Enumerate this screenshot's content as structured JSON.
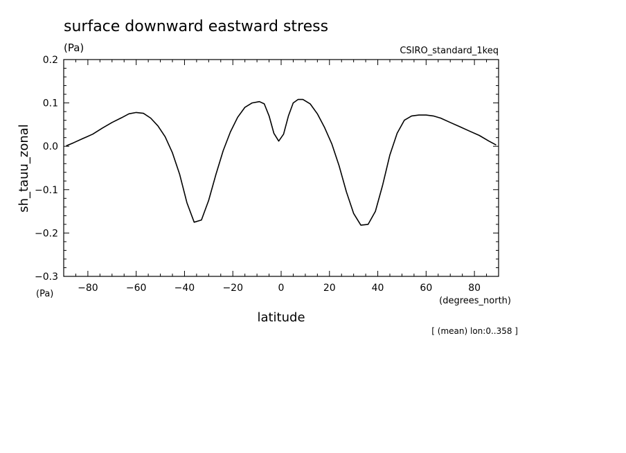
{
  "chart_data": {
    "type": "line",
    "title": "surface downward eastward stress",
    "title_units": "(Pa)",
    "subtitle_right": "CSIRO_standard_1keq",
    "xlabel": "latitude",
    "xunits": "(degrees_north)",
    "ylabel": "sh_tauu_zonal",
    "yunits": "(Pa)",
    "footnote": "[ (mean) lon:0..358 ]",
    "xlim": [
      -90,
      90
    ],
    "ylim": [
      -0.3,
      0.2
    ],
    "x_major_ticks": [
      -80,
      -60,
      -40,
      -20,
      0,
      20,
      40,
      60,
      80
    ],
    "x_tick_labels": [
      "−80",
      "−60",
      "−40",
      "−20",
      "0",
      "20",
      "40",
      "60",
      "80"
    ],
    "y_major_ticks": [
      -0.3,
      -0.2,
      -0.1,
      0.0,
      0.1,
      0.2
    ],
    "y_tick_labels": [
      "−0.3",
      "−0.2",
      "−0.1",
      "0.0",
      "0.1",
      "0.2"
    ],
    "grid": false,
    "legend": "none",
    "series": [
      {
        "color": "#000000",
        "x": [
          -89,
          -86,
          -82,
          -78,
          -74,
          -70,
          -66,
          -63,
          -60,
          -57,
          -54,
          -51,
          -48,
          -45,
          -42,
          -39,
          -36,
          -33,
          -30,
          -27,
          -24,
          -21,
          -18,
          -15,
          -12,
          -9,
          -7,
          -5,
          -3,
          -1,
          1,
          3,
          5,
          7,
          9,
          12,
          15,
          18,
          21,
          24,
          27,
          30,
          33,
          36,
          39,
          42,
          45,
          48,
          51,
          54,
          57,
          60,
          63,
          66,
          70,
          74,
          78,
          82,
          86,
          89
        ],
        "y": [
          0.001,
          0.008,
          0.018,
          0.028,
          0.042,
          0.055,
          0.066,
          0.075,
          0.078,
          0.076,
          0.065,
          0.047,
          0.022,
          -0.015,
          -0.065,
          -0.13,
          -0.175,
          -0.17,
          -0.125,
          -0.065,
          -0.01,
          0.033,
          0.067,
          0.09,
          0.1,
          0.103,
          0.098,
          0.07,
          0.03,
          0.012,
          0.028,
          0.07,
          0.1,
          0.108,
          0.108,
          0.098,
          0.075,
          0.043,
          0.005,
          -0.045,
          -0.105,
          -0.155,
          -0.182,
          -0.18,
          -0.15,
          -0.09,
          -0.02,
          0.03,
          0.06,
          0.07,
          0.072,
          0.072,
          0.07,
          0.065,
          0.055,
          0.045,
          0.035,
          0.025,
          0.012,
          0.003
        ]
      }
    ]
  }
}
